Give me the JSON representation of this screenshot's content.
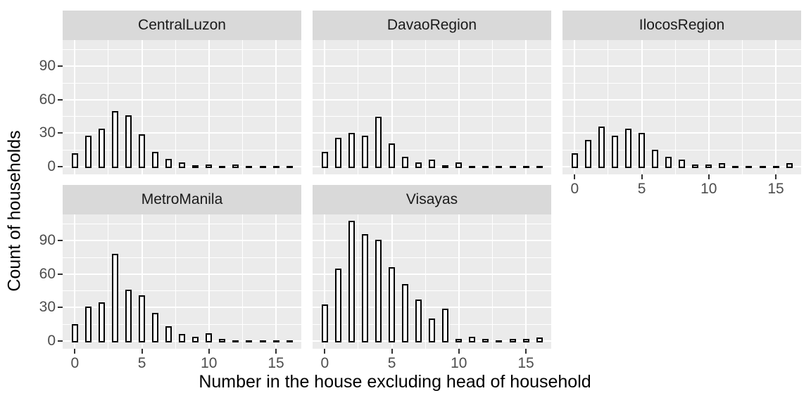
{
  "figure": {
    "x_title": "Number in the house excluding head of household",
    "y_title": "Count of households"
  },
  "chart_data": {
    "type": "bar",
    "kind": "faceted-histogram",
    "title": "",
    "xlabel": "Number in the house excluding head of household",
    "ylabel": "Count of households",
    "x": [
      0,
      1,
      2,
      3,
      4,
      5,
      6,
      7,
      8,
      9,
      10,
      11,
      12,
      13,
      14,
      15,
      16
    ],
    "x_ticks": [
      0,
      5,
      10,
      15
    ],
    "x_tick_labels": [
      "0",
      "5",
      "10",
      "15"
    ],
    "x_minor_ticks": [
      2.5,
      7.5,
      12.5
    ],
    "y_ticks": [
      0,
      30,
      60,
      90
    ],
    "y_tick_labels": [
      "0",
      "30",
      "60",
      "90"
    ],
    "y_minor_ticks": [
      15,
      45,
      75,
      105
    ],
    "xlim": [
      -0.6,
      16.6
    ],
    "ylim": [
      0,
      113
    ],
    "grid": true,
    "legend": "none",
    "facets": [
      {
        "label": "CentralLuzon",
        "row": 0,
        "col": 0,
        "show_x_axis": false,
        "values": [
          12,
          28,
          34,
          50,
          46,
          29,
          13,
          7,
          4,
          1,
          2,
          0,
          2,
          0,
          0,
          0,
          0
        ]
      },
      {
        "label": "DavaoRegion",
        "row": 0,
        "col": 1,
        "show_x_axis": false,
        "values": [
          13,
          26,
          30,
          28,
          45,
          21,
          9,
          4,
          6,
          1,
          4,
          0,
          0,
          0,
          0,
          0,
          0
        ]
      },
      {
        "label": "IlocosRegion",
        "row": 0,
        "col": 2,
        "show_x_axis": true,
        "values": [
          12,
          24,
          36,
          28,
          34,
          30,
          15,
          9,
          6,
          2,
          2,
          3,
          0,
          0,
          0,
          0,
          3
        ]
      },
      {
        "label": "MetroManila",
        "row": 1,
        "col": 0,
        "show_x_axis": true,
        "values": [
          15,
          31,
          35,
          78,
          46,
          41,
          25,
          13,
          6,
          4,
          7,
          2,
          0,
          0,
          0,
          0,
          0
        ]
      },
      {
        "label": "Visayas",
        "row": 1,
        "col": 1,
        "show_x_axis": true,
        "values": [
          33,
          65,
          108,
          96,
          91,
          66,
          51,
          37,
          20,
          29,
          2,
          4,
          2,
          0,
          2,
          2,
          3
        ]
      }
    ],
    "colors": {
      "panel_bg": "#EBEBEB",
      "strip_bg": "#D9D9D9",
      "gridline": "#FFFFFF",
      "bar_fill": "#FFFFFF",
      "bar_stroke": "#000000",
      "tick_text": "#4D4D4D",
      "strip_text": "#1A1A1A",
      "axis_title_text": "#000000"
    }
  }
}
